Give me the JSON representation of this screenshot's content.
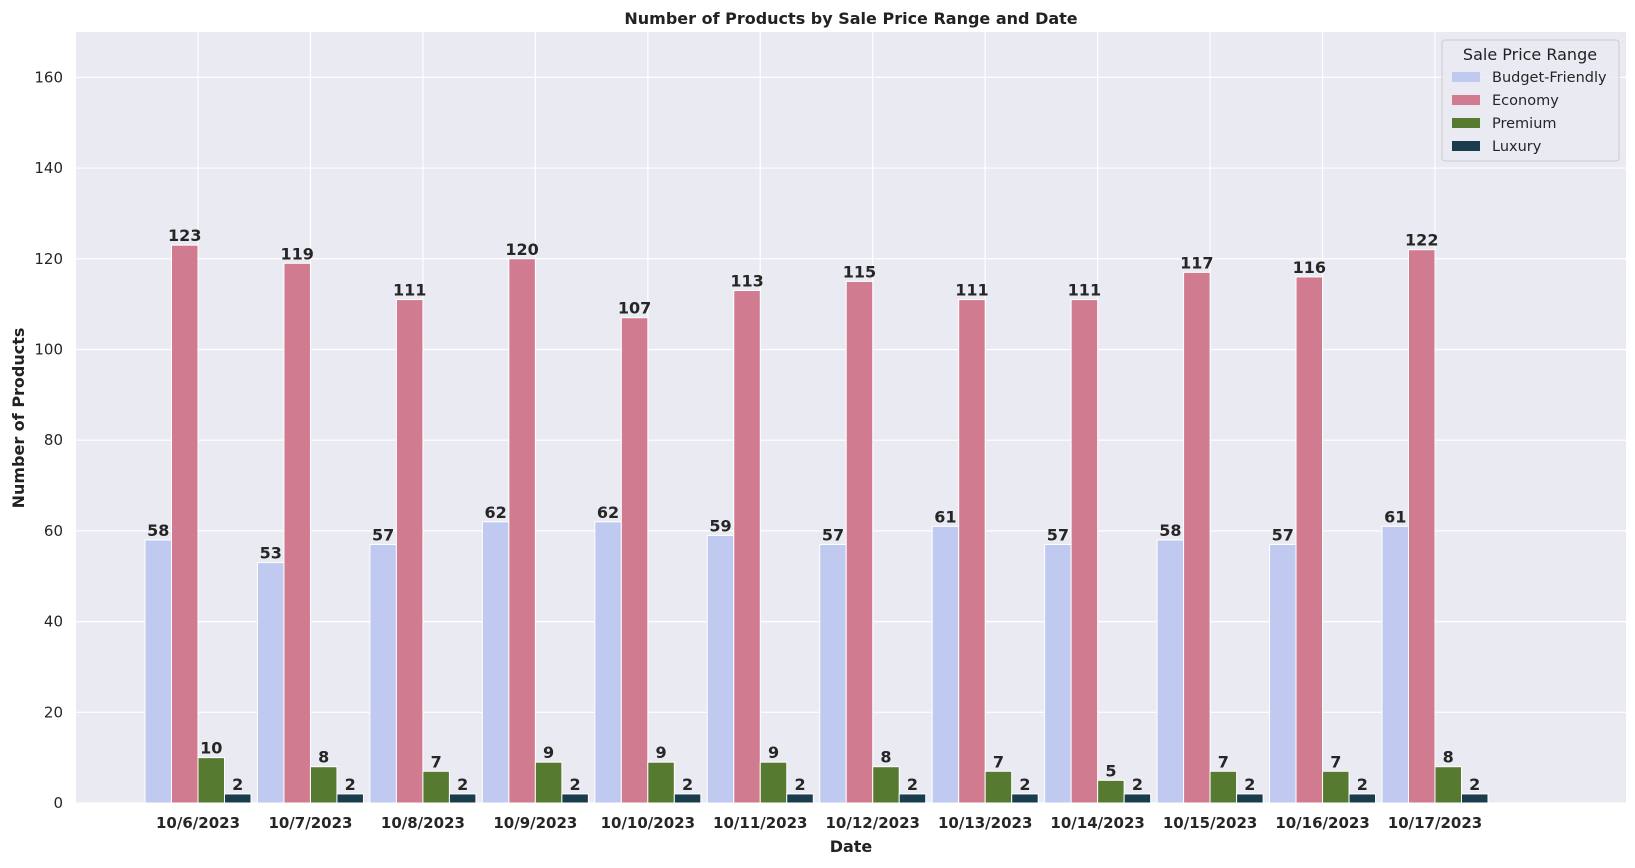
{
  "chart_data": {
    "type": "bar",
    "title": "Number of Products by Sale Price Range and Date",
    "xlabel": "Date",
    "ylabel": "Number of Products",
    "ylim": [
      0,
      170
    ],
    "yticks": [
      0,
      20,
      40,
      60,
      80,
      100,
      120,
      140,
      160
    ],
    "grid": true,
    "legend": {
      "title": "Sale Price Range",
      "placement": "top-right"
    },
    "categories": [
      "10/6/2023",
      "10/7/2023",
      "10/8/2023",
      "10/9/2023",
      "10/10/2023",
      "10/11/2023",
      "10/12/2023",
      "10/13/2023",
      "10/14/2023",
      "10/15/2023",
      "10/16/2023",
      "10/17/2023"
    ],
    "series": [
      {
        "name": "Budget-Friendly",
        "color": "#c0c9f0",
        "values": [
          58,
          53,
          57,
          62,
          62,
          59,
          57,
          61,
          57,
          58,
          57,
          61
        ]
      },
      {
        "name": "Economy",
        "color": "#d07b90",
        "values": [
          123,
          119,
          111,
          120,
          107,
          113,
          115,
          111,
          111,
          117,
          116,
          122
        ]
      },
      {
        "name": "Premium",
        "color": "#577a31",
        "values": [
          10,
          8,
          7,
          9,
          9,
          9,
          8,
          7,
          5,
          7,
          7,
          8
        ]
      },
      {
        "name": "Luxury",
        "color": "#1b3c4d",
        "values": [
          2,
          2,
          2,
          2,
          2,
          2,
          2,
          2,
          2,
          2,
          2,
          2
        ]
      }
    ]
  }
}
